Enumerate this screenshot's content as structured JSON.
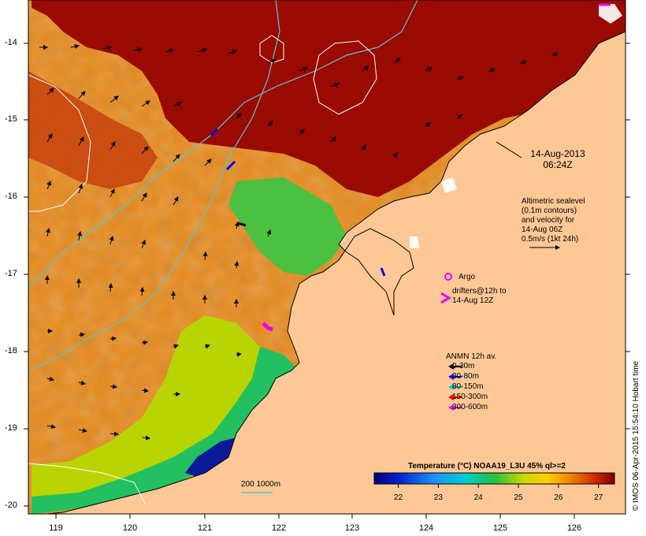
{
  "map": {
    "x_ticks": [
      "119",
      "120",
      "121",
      "122",
      "123",
      "124",
      "125",
      "126"
    ],
    "y_ticks": [
      "-14",
      "-15",
      "-16",
      "-17",
      "-18",
      "-19",
      "-20"
    ],
    "datestamp": {
      "line1": "14-Aug-2013",
      "line2": "06:24Z"
    },
    "altimetry_note": [
      "Altimetric sealevel",
      "(0.1m contours)",
      "and velocity for",
      "14-Aug 06Z",
      "0.5m/s (1kt 24h)"
    ],
    "argo_label": "Argo",
    "drifters_label": [
      "drifters@12h to",
      "14-Aug 12Z"
    ],
    "drifter_symbol": ">",
    "anmn_legend": {
      "title": "ANMN 12h av.",
      "rows": [
        {
          "label": "0-30m",
          "color": "#000000"
        },
        {
          "label": "30-80m",
          "color": "#0000ee"
        },
        {
          "label": "80-150m",
          "color": "#00c8c8"
        },
        {
          "label": "150-300m",
          "color": "#ee0000"
        },
        {
          "label": "300-600m",
          "color": "#ee00ee"
        }
      ]
    },
    "colorbar": {
      "title": "Temperature (°C) NOAA19_L3U 45% ql>=2",
      "ticks": [
        "22",
        "23",
        "24",
        "25",
        "26",
        "27"
      ],
      "range": [
        21.4,
        27.4
      ]
    },
    "scale_label": "200  1000m",
    "credit": "© IMOS 06-Apr-2015 15:54:10 Hobart time",
    "colors": {
      "land": "#fdc896",
      "warm": "#9b0a00",
      "contour_shelf": "#55c8d2",
      "contour_sealevel": "#ffffff",
      "argo": "#ee00ee"
    }
  }
}
